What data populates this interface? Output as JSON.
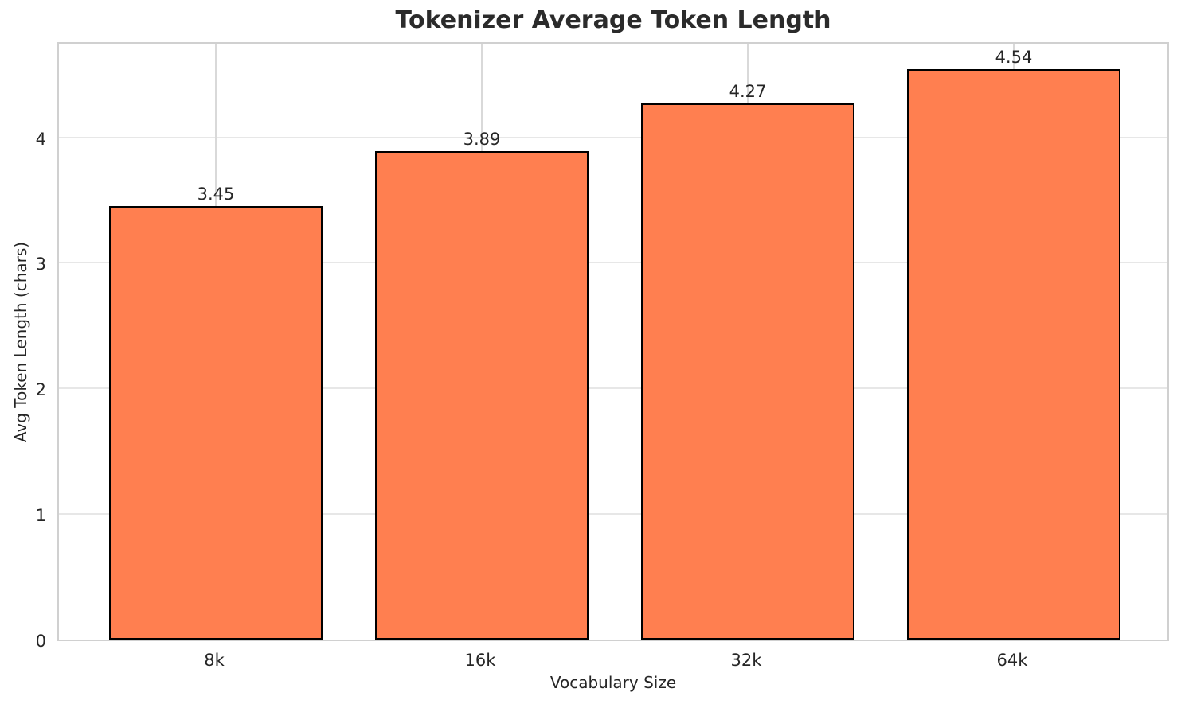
{
  "figure": {
    "background": "#ffffff",
    "text_color": "#262626",
    "spine_color": "#d0d0d0",
    "grid_color_h": "#e7e7e7",
    "grid_color_v": "#d9d9d9"
  },
  "chart_data": {
    "type": "bar",
    "title": "Tokenizer Average Token Length",
    "xlabel": "Vocabulary Size",
    "ylabel": "Avg Token Length (chars)",
    "categories": [
      "8k",
      "16k",
      "32k",
      "64k"
    ],
    "values": [
      3.45,
      3.89,
      4.27,
      4.54
    ],
    "value_labels": [
      "3.45",
      "3.89",
      "4.27",
      "4.54"
    ],
    "ytick_labels": [
      "0",
      "1",
      "2",
      "3",
      "4"
    ],
    "ytick_values": [
      0,
      1,
      2,
      3,
      4
    ],
    "ylim": [
      0,
      4.77
    ],
    "xlim_units": [
      -0.59,
      3.59
    ],
    "bar_width_fraction": 0.8,
    "grid": true,
    "legend_position": null,
    "bar_color": "#FF7F50",
    "bar_edge_color": "#000000"
  }
}
